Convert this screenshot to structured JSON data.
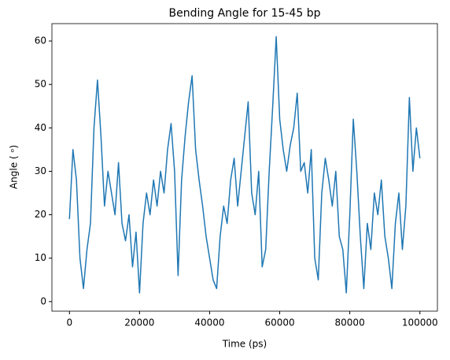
{
  "chart_data": {
    "type": "line",
    "title": "Bending Angle for 15-45 bp",
    "x_label": "Time (ps)",
    "y_label": "Angle ( ᵒ)",
    "x": [
      0,
      1000,
      2000,
      3000,
      4000,
      5000,
      6000,
      7000,
      8000,
      9000,
      10000,
      11000,
      12000,
      13000,
      14000,
      15000,
      16000,
      17000,
      18000,
      19000,
      20000,
      21000,
      22000,
      23000,
      24000,
      25000,
      26000,
      27000,
      28000,
      29000,
      30000,
      31000,
      32000,
      33000,
      34000,
      35000,
      36000,
      37000,
      38000,
      39000,
      40000,
      41000,
      42000,
      43000,
      44000,
      45000,
      46000,
      47000,
      48000,
      49000,
      50000,
      51000,
      52000,
      53000,
      54000,
      55000,
      56000,
      57000,
      58000,
      59000,
      60000,
      61000,
      62000,
      63000,
      64000,
      65000,
      66000,
      67000,
      68000,
      69000,
      70000,
      71000,
      72000,
      73000,
      74000,
      75000,
      76000,
      77000,
      78000,
      79000,
      80000,
      81000,
      82000,
      83000,
      84000,
      85000,
      86000,
      87000,
      88000,
      89000,
      90000,
      91000,
      92000,
      93000,
      94000,
      95000,
      96000,
      97000,
      98000,
      99000,
      100000
    ],
    "series": [
      {
        "name": "Bending angle",
        "color": "#1f77b4",
        "values": [
          19,
          35,
          28,
          10,
          3,
          12,
          18,
          40,
          51,
          38,
          22,
          30,
          25,
          20,
          32,
          18,
          14,
          20,
          8,
          16,
          2,
          18,
          25,
          20,
          28,
          22,
          30,
          25,
          35,
          41,
          30,
          6,
          28,
          38,
          46,
          52,
          35,
          28,
          22,
          15,
          10,
          5,
          3,
          15,
          22,
          18,
          28,
          33,
          22,
          30,
          38,
          46,
          25,
          20,
          30,
          8,
          12,
          30,
          45,
          61,
          42,
          35,
          30,
          36,
          40,
          48,
          30,
          32,
          25,
          35,
          10,
          5,
          25,
          33,
          28,
          22,
          30,
          15,
          12,
          2,
          20,
          42,
          30,
          15,
          3,
          18,
          12,
          25,
          20,
          28,
          15,
          10,
          3,
          18,
          25,
          12,
          22,
          47,
          30,
          40,
          33
        ]
      }
    ],
    "xlim": [
      -5000,
      105000
    ],
    "ylim": [
      -2.2,
      64
    ],
    "xticks": [
      0,
      20000,
      40000,
      60000,
      80000,
      100000
    ],
    "yticks": [
      0,
      10,
      20,
      30,
      40,
      50,
      60
    ],
    "grid": false
  }
}
